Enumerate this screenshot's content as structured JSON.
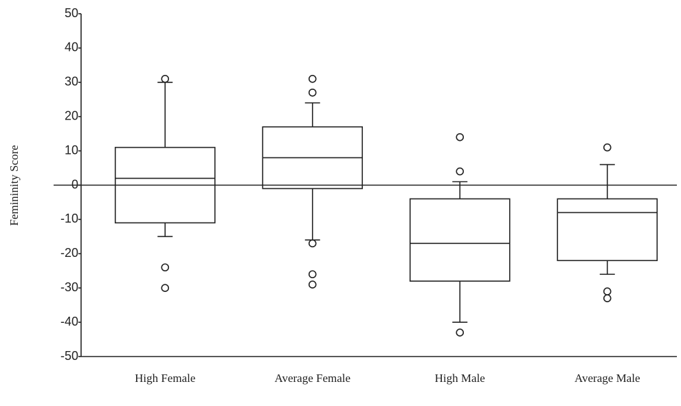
{
  "chart_data": {
    "type": "box",
    "y_label": "Femininity Score",
    "categories": [
      "High Female",
      "Average Female",
      "High Male",
      "Average Male"
    ],
    "boxes": [
      {
        "whislo": -15,
        "q1": -11,
        "med": 2,
        "q3": 11,
        "whishi": 30,
        "fliers": [
          31,
          -24,
          -30
        ]
      },
      {
        "whislo": -16,
        "q1": -1,
        "med": 8,
        "q3": 17,
        "whishi": 24,
        "fliers": [
          31,
          27,
          -17,
          -26,
          -29
        ]
      },
      {
        "whislo": -40,
        "q1": -28,
        "med": -17,
        "q3": -4,
        "whishi": 1,
        "fliers": [
          14,
          4,
          -43
        ]
      },
      {
        "whislo": -26,
        "q1": -22,
        "med": -8,
        "q3": -4,
        "whishi": 6,
        "fliers": [
          11,
          -31,
          -33
        ]
      }
    ],
    "ylim": [
      -50,
      50
    ],
    "yticks": [
      50,
      40,
      30,
      20,
      10,
      0,
      -10,
      -20,
      -30,
      -40,
      -50
    ]
  }
}
